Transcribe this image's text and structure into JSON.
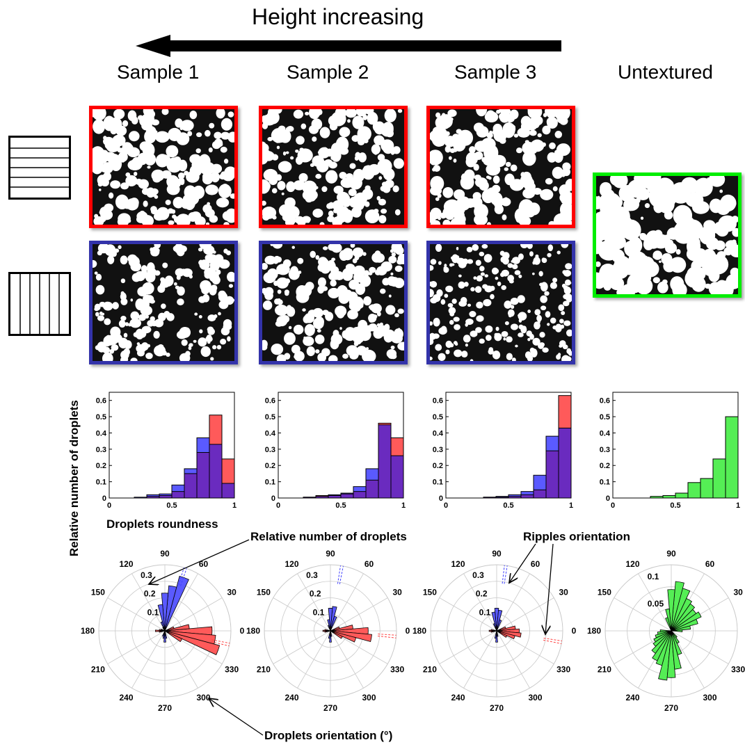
{
  "header": {
    "title": "Height increasing",
    "columns": [
      "Sample 1",
      "Sample 2",
      "Sample 3",
      "Untextured"
    ]
  },
  "labels": {
    "ylabel": "Relative number of droplets",
    "xlabel": "Droplets roundness",
    "annot_relative": "Relative number of droplets",
    "annot_ripples": "Ripples orientation",
    "annot_orientation": "Droplets orientation (°)"
  },
  "colors": {
    "horizontal_frame": "#ff0000",
    "vertical_frame": "#3333aa",
    "untextured_frame": "#00ee00",
    "red_bar": "#ff5a5a",
    "blue_bar": "#5a5aff",
    "overlap_bar": "#6a2bbf",
    "green_bar": "#55ee55"
  },
  "chart_data": [
    {
      "type": "bar",
      "panel": "Sample 1",
      "xlim": [
        0,
        1
      ],
      "ylim": [
        0,
        0.65
      ],
      "xticks": [
        "0",
        "0.5",
        "1"
      ],
      "yticks": [
        "0",
        "0.1",
        "0.2",
        "0.3",
        "0.4",
        "0.5",
        "0.6"
      ],
      "bin_edges": [
        0,
        0.1,
        0.2,
        0.3,
        0.4,
        0.5,
        0.6,
        0.7,
        0.8,
        0.9,
        1.0
      ],
      "series": [
        {
          "color": "red",
          "values": [
            0,
            0,
            0,
            0.01,
            0.015,
            0.04,
            0.15,
            0.28,
            0.51,
            0.24
          ]
        },
        {
          "color": "blue",
          "values": [
            0,
            0,
            0.005,
            0.02,
            0.025,
            0.08,
            0.18,
            0.37,
            0.33,
            0.09
          ]
        }
      ]
    },
    {
      "type": "bar",
      "panel": "Sample 2",
      "xlim": [
        0,
        1
      ],
      "ylim": [
        0,
        0.65
      ],
      "xticks": [
        "0",
        "0.5",
        "1"
      ],
      "yticks": [
        "0",
        "0.1",
        "0.2",
        "0.3",
        "0.4",
        "0.5",
        "0.6"
      ],
      "bin_edges": [
        0,
        0.1,
        0.2,
        0.3,
        0.4,
        0.5,
        0.6,
        0.7,
        0.8,
        0.9,
        1.0
      ],
      "series": [
        {
          "color": "red",
          "values": [
            0,
            0,
            0.005,
            0.015,
            0.015,
            0.025,
            0.04,
            0.11,
            0.46,
            0.37
          ]
        },
        {
          "color": "blue",
          "values": [
            0,
            0,
            0.005,
            0.01,
            0.02,
            0.03,
            0.07,
            0.18,
            0.45,
            0.26
          ]
        }
      ]
    },
    {
      "type": "bar",
      "panel": "Sample 3",
      "xlim": [
        0,
        1
      ],
      "ylim": [
        0,
        0.65
      ],
      "xticks": [
        "0",
        "0.5",
        "1"
      ],
      "yticks": [
        "0",
        "0.1",
        "0.2",
        "0.3",
        "0.4",
        "0.5",
        "0.6"
      ],
      "bin_edges": [
        0,
        0.1,
        0.2,
        0.3,
        0.4,
        0.5,
        0.6,
        0.7,
        0.8,
        0.9,
        1.0
      ],
      "series": [
        {
          "color": "red",
          "values": [
            0,
            0,
            0,
            0.005,
            0.005,
            0.01,
            0.02,
            0.05,
            0.29,
            0.63
          ]
        },
        {
          "color": "blue",
          "values": [
            0,
            0,
            0,
            0.005,
            0.01,
            0.02,
            0.04,
            0.14,
            0.38,
            0.43
          ]
        }
      ]
    },
    {
      "type": "bar",
      "panel": "Untextured",
      "xlim": [
        0,
        1
      ],
      "ylim": [
        0,
        0.65
      ],
      "xticks": [
        "0",
        "0.5",
        "1"
      ],
      "yticks": [
        "0",
        "0.1",
        "0.2",
        "0.3",
        "0.4",
        "0.5",
        "0.6"
      ],
      "bin_edges": [
        0,
        0.1,
        0.2,
        0.3,
        0.4,
        0.5,
        0.6,
        0.7,
        0.8,
        0.9,
        1.0
      ],
      "series": [
        {
          "color": "green",
          "values": [
            0,
            0,
            0,
            0.01,
            0.015,
            0.03,
            0.095,
            0.12,
            0.24,
            0.5
          ]
        }
      ]
    },
    {
      "type": "polar-bar",
      "panel": "Sample 1",
      "rmax": 0.35,
      "rticks": [
        "0.1",
        "0.2",
        "0.3"
      ],
      "angle_ticks": [
        "0",
        "30",
        "60",
        "90",
        "120",
        "150",
        "180",
        "210",
        "240",
        "270",
        "300",
        "330"
      ],
      "series": [
        {
          "color": "blue",
          "bars": [
            [
              70,
              0.3
            ],
            [
              80,
              0.24
            ],
            [
              90,
              0.2
            ],
            [
              100,
              0.14
            ],
            [
              110,
              0.05
            ],
            [
              270,
              0.06
            ],
            [
              260,
              0.04
            ],
            [
              280,
              0.04
            ],
            [
              250,
              0.03
            ],
            [
              120,
              0.02
            ]
          ]
        },
        {
          "color": "red",
          "bars": [
            [
              0,
              0.25
            ],
            [
              350,
              0.27
            ],
            [
              340,
              0.3
            ],
            [
              10,
              0.13
            ],
            [
              330,
              0.1
            ],
            [
              20,
              0.05
            ],
            [
              180,
              0.05
            ],
            [
              170,
              0.03
            ],
            [
              190,
              0.03
            ],
            [
              160,
              0.02
            ]
          ]
        }
      ],
      "ripples": [
        {
          "color": "blue",
          "angle": 72
        },
        {
          "color": "red",
          "angle": 348
        }
      ]
    },
    {
      "type": "polar-bar",
      "panel": "Sample 2",
      "rmax": 0.35,
      "rticks": [
        "0.1",
        "0.2",
        "0.3"
      ],
      "angle_ticks": [
        "0",
        "30",
        "60",
        "90",
        "120",
        "150",
        "180",
        "210",
        "240",
        "270",
        "300",
        "330"
      ],
      "series": [
        {
          "color": "blue",
          "bars": [
            [
              80,
              0.13
            ],
            [
              90,
              0.12
            ],
            [
              70,
              0.08
            ],
            [
              100,
              0.06
            ],
            [
              270,
              0.06
            ],
            [
              260,
              0.04
            ],
            [
              280,
              0.03
            ],
            [
              110,
              0.03
            ]
          ]
        },
        {
          "color": "red",
          "bars": [
            [
              0,
              0.2
            ],
            [
              350,
              0.22
            ],
            [
              340,
              0.14
            ],
            [
              10,
              0.12
            ],
            [
              330,
              0.07
            ],
            [
              20,
              0.05
            ],
            [
              180,
              0.04
            ],
            [
              170,
              0.03
            ],
            [
              190,
              0.03
            ]
          ]
        }
      ],
      "ripples": [
        {
          "color": "blue",
          "angle": 80
        },
        {
          "color": "red",
          "angle": 355
        }
      ]
    },
    {
      "type": "polar-bar",
      "panel": "Sample 3",
      "rmax": 0.35,
      "rticks": [
        "0.1",
        "0.2",
        "0.3"
      ],
      "angle_ticks": [
        "0",
        "30",
        "60",
        "90",
        "120",
        "150",
        "180",
        "210",
        "240",
        "270",
        "300",
        "330"
      ],
      "series": [
        {
          "color": "blue",
          "bars": [
            [
              90,
              0.12
            ],
            [
              80,
              0.11
            ],
            [
              100,
              0.1
            ],
            [
              70,
              0.06
            ],
            [
              270,
              0.06
            ],
            [
              260,
              0.04
            ],
            [
              280,
              0.03
            ],
            [
              110,
              0.04
            ]
          ]
        },
        {
          "color": "red",
          "bars": [
            [
              0,
              0.12
            ],
            [
              350,
              0.13
            ],
            [
              340,
              0.1
            ],
            [
              10,
              0.1
            ],
            [
              330,
              0.06
            ],
            [
              20,
              0.05
            ],
            [
              180,
              0.04
            ],
            [
              170,
              0.03
            ],
            [
              190,
              0.03
            ]
          ]
        }
      ],
      "ripples": [
        {
          "color": "blue",
          "angle": 82
        },
        {
          "color": "red",
          "angle": 350
        }
      ]
    },
    {
      "type": "polar-bar",
      "panel": "Untextured",
      "rmax": 0.12,
      "rticks": [
        "0.05",
        "0.1"
      ],
      "angle_ticks": [
        "0",
        "30",
        "60",
        "90",
        "120",
        "150",
        "180",
        "210",
        "240",
        "270",
        "300",
        "330"
      ],
      "series": [
        {
          "color": "green",
          "bars": [
            [
              0,
              0.02
            ],
            [
              10,
              0.035
            ],
            [
              20,
              0.05
            ],
            [
              30,
              0.06
            ],
            [
              40,
              0.055
            ],
            [
              50,
              0.06
            ],
            [
              60,
              0.065
            ],
            [
              70,
              0.08
            ],
            [
              80,
              0.09
            ],
            [
              90,
              0.075
            ],
            [
              100,
              0.04
            ],
            [
              110,
              0.025
            ],
            [
              180,
              0.02
            ],
            [
              190,
              0.025
            ],
            [
              200,
              0.03
            ],
            [
              210,
              0.035
            ],
            [
              220,
              0.04
            ],
            [
              230,
              0.05
            ],
            [
              240,
              0.06
            ],
            [
              250,
              0.065
            ],
            [
              260,
              0.09
            ],
            [
              270,
              0.085
            ],
            [
              280,
              0.07
            ],
            [
              290,
              0.045
            ],
            [
              300,
              0.025
            ],
            [
              310,
              0.015
            ]
          ]
        }
      ]
    }
  ]
}
